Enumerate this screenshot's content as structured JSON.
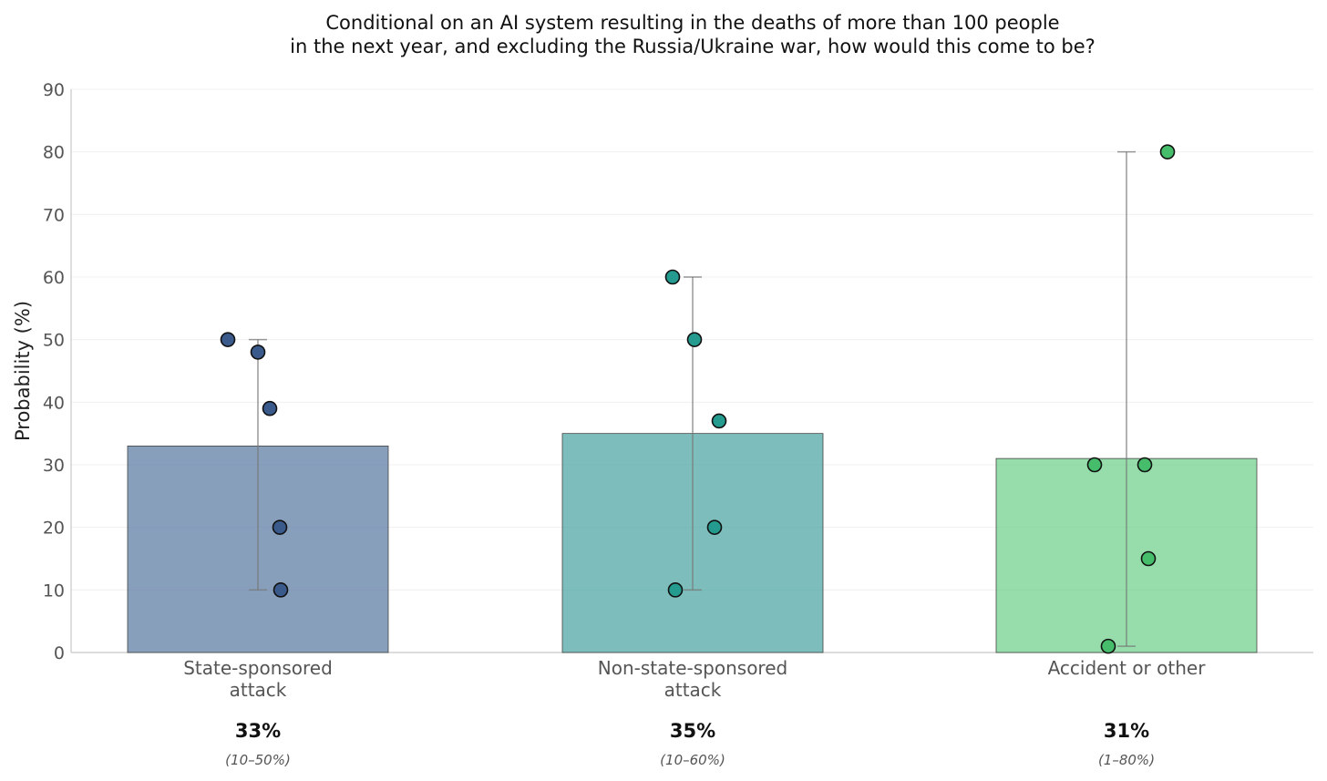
{
  "chart_data": {
    "type": "bar",
    "title_lines": [
      "Conditional on an AI system resulting in the deaths of more than 100 people",
      "in the next year, and excluding the Russia/Ukraine war, how would this come to be?"
    ],
    "ylabel": "Probability (%)",
    "xlabel": "",
    "ylim": [
      0,
      90
    ],
    "yticks": [
      0,
      10,
      20,
      30,
      40,
      50,
      60,
      70,
      80,
      90
    ],
    "grid": true,
    "categories": [
      {
        "label_lines": [
          "State-sponsored",
          "attack"
        ],
        "value": 33,
        "value_label": "33%",
        "range": [
          10,
          50
        ],
        "range_label": "(10–50%)",
        "points": [
          50,
          48,
          39,
          20,
          10
        ],
        "color": "#4a6d99",
        "point_color": "#3a5a8c"
      },
      {
        "label_lines": [
          "Non-state-sponsored",
          "attack"
        ],
        "value": 35,
        "value_label": "35%",
        "range": [
          10,
          60
        ],
        "range_label": "(10–60%)",
        "points": [
          60,
          50,
          37,
          20,
          10
        ],
        "color": "#3a9c99",
        "point_color": "#259a8e"
      },
      {
        "label_lines": [
          "Accident or other"
        ],
        "value": 31,
        "value_label": "31%",
        "range": [
          1,
          80
        ],
        "range_label": "(1–80%)",
        "points": [
          80,
          30,
          30,
          15,
          1
        ],
        "color": "#5fcb80",
        "point_color": "#45bd6a"
      }
    ]
  }
}
